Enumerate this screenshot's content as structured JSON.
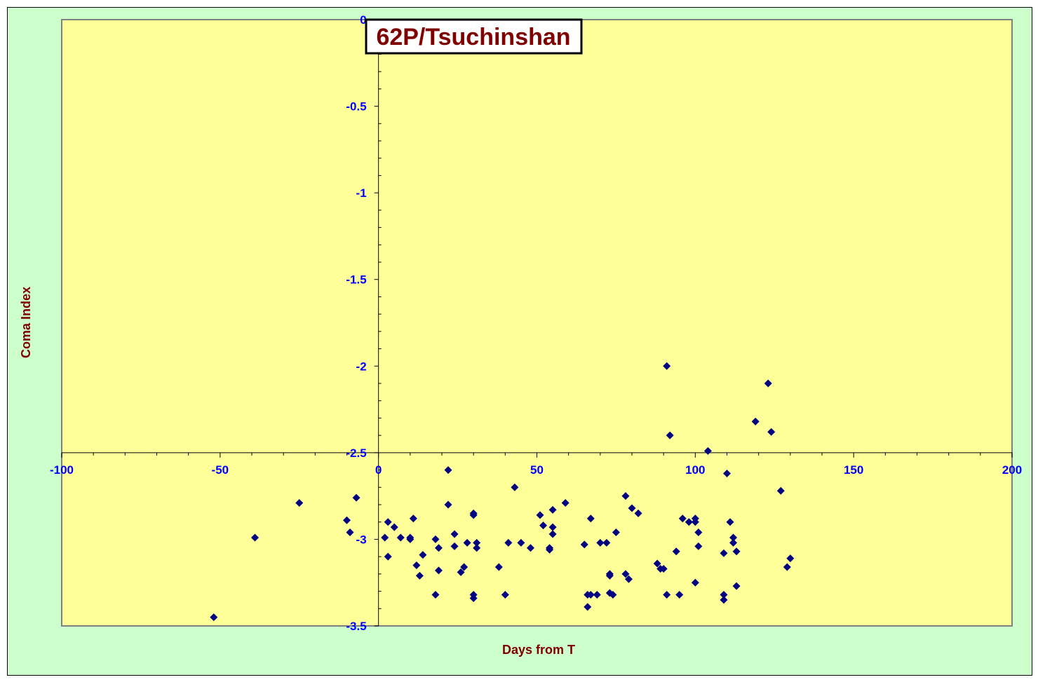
{
  "chart_data": {
    "type": "scatter",
    "title": "62P/Tsuchinshan",
    "xlabel": "Days from T",
    "ylabel": "Coma Index",
    "xlim": [
      -100,
      200
    ],
    "ylim": [
      -3.5,
      0
    ],
    "x_ticks": [
      "-100",
      "-50",
      "0",
      "50",
      "100",
      "150",
      "200"
    ],
    "y_ticks": [
      "0",
      "-0.5",
      "-1",
      "-1.5",
      "-2",
      "-2.5",
      "-3",
      "-3.5"
    ],
    "grid": false,
    "colors": {
      "plot_area": "#ffff99",
      "frame": "#ccffcc",
      "marker": "#000080",
      "title_text": "#800000",
      "tick_text": "#0000ff"
    },
    "marker": "diamond",
    "series": [
      {
        "points": [
          [
            -52,
            -3.45
          ],
          [
            -39,
            -2.99
          ],
          [
            -25,
            -2.79
          ],
          [
            -10,
            -2.89
          ],
          [
            -9,
            -2.96
          ],
          [
            -7,
            -2.76
          ],
          [
            2,
            -2.99
          ],
          [
            3,
            -3.1
          ],
          [
            3,
            -2.9
          ],
          [
            5,
            -2.93
          ],
          [
            7,
            -2.99
          ],
          [
            10,
            -3.0
          ],
          [
            10,
            -2.99
          ],
          [
            11,
            -2.88
          ],
          [
            12,
            -3.15
          ],
          [
            13,
            -3.21
          ],
          [
            14,
            -3.09
          ],
          [
            18,
            -3.0
          ],
          [
            18,
            -3.32
          ],
          [
            19,
            -3.05
          ],
          [
            19,
            -3.18
          ],
          [
            22,
            -2.8
          ],
          [
            22,
            -2.6
          ],
          [
            24,
            -2.97
          ],
          [
            24,
            -3.04
          ],
          [
            26,
            -3.19
          ],
          [
            27,
            -3.16
          ],
          [
            28,
            -3.02
          ],
          [
            30,
            -2.85
          ],
          [
            30,
            -2.86
          ],
          [
            30,
            -3.32
          ],
          [
            30,
            -3.34
          ],
          [
            31,
            -3.02
          ],
          [
            31,
            -3.05
          ],
          [
            38,
            -3.16
          ],
          [
            40,
            -3.32
          ],
          [
            41,
            -3.02
          ],
          [
            43,
            -2.7
          ],
          [
            45,
            -3.02
          ],
          [
            48,
            -3.05
          ],
          [
            51,
            -2.86
          ],
          [
            52,
            -2.92
          ],
          [
            54,
            -3.05
          ],
          [
            54,
            -3.06
          ],
          [
            55,
            -2.93
          ],
          [
            55,
            -2.97
          ],
          [
            55,
            -2.83
          ],
          [
            59,
            -2.79
          ],
          [
            65,
            -3.03
          ],
          [
            66,
            -3.32
          ],
          [
            66,
            -3.39
          ],
          [
            67,
            -2.88
          ],
          [
            67,
            -3.32
          ],
          [
            69,
            -3.32
          ],
          [
            70,
            -3.02
          ],
          [
            72,
            -3.02
          ],
          [
            73,
            -3.2
          ],
          [
            73,
            -3.21
          ],
          [
            73,
            -3.31
          ],
          [
            74,
            -3.32
          ],
          [
            75,
            -2.96
          ],
          [
            78,
            -2.75
          ],
          [
            78,
            -3.2
          ],
          [
            79,
            -3.23
          ],
          [
            80,
            -2.82
          ],
          [
            82,
            -2.85
          ],
          [
            88,
            -3.14
          ],
          [
            89,
            -3.17
          ],
          [
            90,
            -3.17
          ],
          [
            91,
            -3.32
          ],
          [
            91,
            -2.0
          ],
          [
            92,
            -2.4
          ],
          [
            94,
            -3.07
          ],
          [
            95,
            -3.32
          ],
          [
            96,
            -2.88
          ],
          [
            98,
            -2.9
          ],
          [
            100,
            -2.88
          ],
          [
            100,
            -2.9
          ],
          [
            100,
            -3.25
          ],
          [
            101,
            -2.96
          ],
          [
            101,
            -3.04
          ],
          [
            104,
            -2.49
          ],
          [
            109,
            -3.32
          ],
          [
            109,
            -3.35
          ],
          [
            109,
            -3.08
          ],
          [
            110,
            -2.62
          ],
          [
            111,
            -2.9
          ],
          [
            112,
            -2.99
          ],
          [
            112,
            -3.02
          ],
          [
            113,
            -3.27
          ],
          [
            113,
            -3.07
          ],
          [
            119,
            -2.32
          ],
          [
            123,
            -2.1
          ],
          [
            124,
            -2.38
          ],
          [
            127,
            -2.72
          ],
          [
            129,
            -3.16
          ],
          [
            130,
            -3.11
          ]
        ]
      }
    ]
  }
}
